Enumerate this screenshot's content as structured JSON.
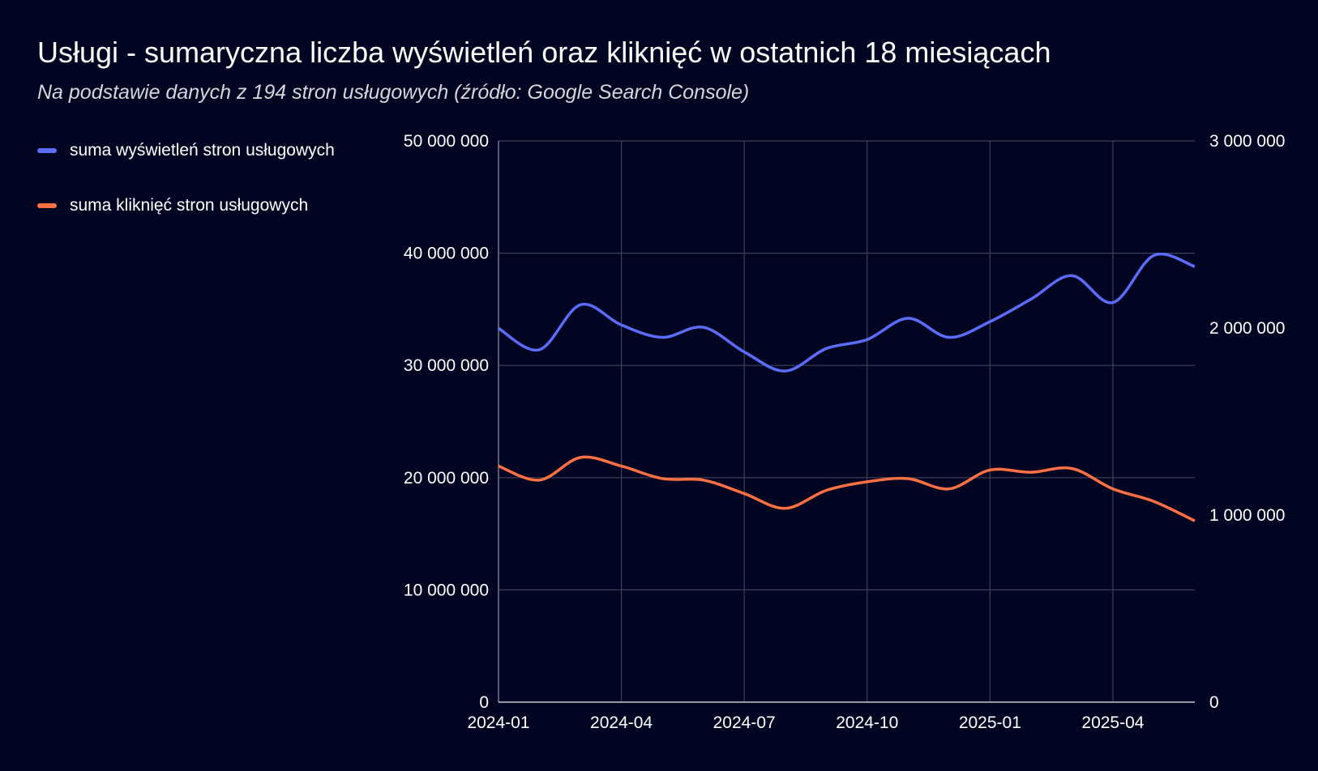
{
  "title": "Usługi - sumaryczna liczba wyświetleń oraz kliknięć w ostatnich 18 miesiącach",
  "subtitle": "Na podstawie danych z 194 stron usługowych (źródło: Google Search Console)",
  "chart_data": {
    "type": "line",
    "x": [
      "2024-01",
      "2024-02",
      "2024-03",
      "2024-04",
      "2024-05",
      "2024-06",
      "2024-07",
      "2024-08",
      "2024-09",
      "2024-10",
      "2024-11",
      "2024-12",
      "2025-01",
      "2025-02",
      "2025-03",
      "2025-04",
      "2025-05",
      "2025-06"
    ],
    "x_tick_labels": [
      "2024-01",
      "2024-04",
      "2024-07",
      "2024-10",
      "2025-01",
      "2025-04"
    ],
    "y_left": {
      "range": [
        0,
        50000000
      ],
      "tick_labels": [
        "0",
        "10 000 000",
        "20 000 000",
        "30 000 000",
        "40 000 000",
        "50 000 000"
      ]
    },
    "y_right": {
      "range": [
        0,
        3000000
      ],
      "tick_labels": [
        "0",
        "1 000 000",
        "2 000 000",
        "3 000 000"
      ]
    },
    "grid": true,
    "legend_position": "left",
    "smooth": true,
    "series": [
      {
        "name": "suma wyświetleń stron usługowych",
        "axis": "left",
        "color": "#5b6cf9",
        "values": [
          33300000,
          31400000,
          35400000,
          33600000,
          32500000,
          33400000,
          31200000,
          29500000,
          31500000,
          32300000,
          34200000,
          32500000,
          33900000,
          35900000,
          38000000,
          35600000,
          39800000,
          38800000
        ]
      },
      {
        "name": "suma kliknięć stron usługowych",
        "axis": "right",
        "color": "#ff7043",
        "values": [
          1262000,
          1187000,
          1308000,
          1262000,
          1195000,
          1187000,
          1115000,
          1036000,
          1132000,
          1178000,
          1195000,
          1140000,
          1241000,
          1229000,
          1249000,
          1140000,
          1073000,
          969000
        ]
      }
    ]
  }
}
